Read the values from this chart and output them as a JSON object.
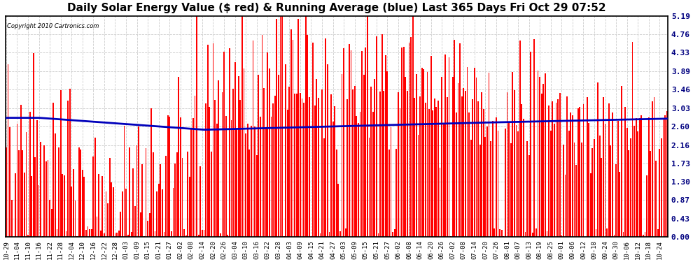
{
  "title": "Daily Solar Energy Value ($ red) & Running Average (blue) Last 365 Days Fri Oct 29 07:52",
  "copyright_text": "Copyright 2010 Cartronics.com",
  "bar_color": "#ff0000",
  "avg_line_color": "#0000bb",
  "background_color": "#ffffff",
  "grid_color": "#cccccc",
  "ytick_labels": [
    "0.00",
    "0.43",
    "0.87",
    "1.30",
    "1.73",
    "2.16",
    "2.60",
    "3.03",
    "3.46",
    "3.89",
    "4.33",
    "4.76",
    "5.19"
  ],
  "ytick_values": [
    0.0,
    0.43,
    0.87,
    1.3,
    1.73,
    2.16,
    2.6,
    3.03,
    3.46,
    3.89,
    4.33,
    4.76,
    5.19
  ],
  "ylim": [
    0.0,
    5.19
  ],
  "xtick_labels": [
    "10-29",
    "11-04",
    "11-10",
    "11-16",
    "11-22",
    "11-28",
    "12-04",
    "12-10",
    "12-16",
    "12-22",
    "12-28",
    "01-03",
    "01-09",
    "01-15",
    "01-21",
    "01-27",
    "02-02",
    "02-08",
    "02-14",
    "02-20",
    "02-26",
    "03-04",
    "03-10",
    "03-16",
    "03-22",
    "03-28",
    "04-03",
    "04-09",
    "04-15",
    "04-21",
    "04-27",
    "05-03",
    "05-09",
    "05-15",
    "05-21",
    "05-27",
    "06-02",
    "06-08",
    "06-14",
    "06-20",
    "06-26",
    "07-02",
    "07-08",
    "07-14",
    "07-20",
    "07-26",
    "08-01",
    "08-07",
    "08-13",
    "08-19",
    "08-25",
    "09-01",
    "09-06",
    "09-12",
    "09-18",
    "09-24",
    "09-30",
    "10-06",
    "10-12",
    "10-18",
    "10-24"
  ],
  "title_fontsize": 11,
  "axis_fontsize": 7,
  "bar_width": 0.7,
  "avg_linewidth": 2.0,
  "figsize": [
    9.9,
    3.75
  ],
  "dpi": 100
}
